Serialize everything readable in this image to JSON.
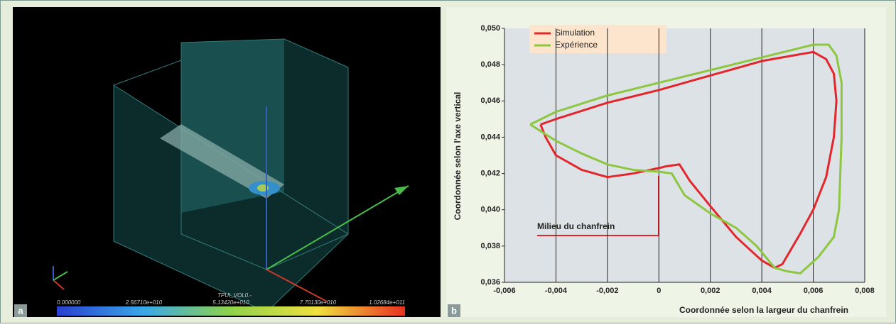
{
  "left_panel": {
    "letter": "a",
    "colorbar_title": "TPUI_VOL0.-",
    "colorbar_labels": [
      "0.000000",
      "2.56710e+010",
      "5.13420e+010",
      "7.70130e+010",
      "1.02684e+011"
    ]
  },
  "chart_data": {
    "type": "line",
    "letter": "b",
    "x_label": "Coordonnée selon la largeur du chanfrein",
    "y_label": "Coordonnée selon l’axe vertical",
    "annotation": "Milieu du chanfrein",
    "xlim": [
      -0.006,
      0.008
    ],
    "xticks": [
      {
        "value": -0.006,
        "label": "-0,006"
      },
      {
        "value": -0.004,
        "label": "-0,004"
      },
      {
        "value": -0.002,
        "label": "-0,002"
      },
      0,
      {
        "value": 0.002,
        "label": "0,002"
      },
      {
        "value": 0.004,
        "label": "0,004"
      },
      {
        "value": 0.006,
        "label": "0,006"
      },
      {
        "value": 0.008,
        "label": "0,008"
      }
    ],
    "ylim": [
      0.036,
      0.05
    ],
    "yticks": [
      {
        "value": 0.036,
        "label": "0,036"
      },
      {
        "value": 0.038,
        "label": "0,038"
      },
      {
        "value": 0.04,
        "label": "0,040"
      },
      {
        "value": 0.042,
        "label": "0,042"
      },
      {
        "value": 0.044,
        "label": "0,044"
      },
      {
        "value": 0.046,
        "label": "0,046"
      },
      {
        "value": 0.048,
        "label": "0,048"
      },
      {
        "value": 0.05,
        "label": "0,050"
      }
    ],
    "grid": "x",
    "series": [
      {
        "name": "Simulation",
        "color": "#e3262b",
        "x": [
          -0.0046,
          -0.004,
          -0.002,
          0,
          0.002,
          0.004,
          0.006,
          0.0065,
          0.0068,
          0.0069,
          0.0068,
          0.0065,
          0.006,
          0.0055,
          0.0048,
          0.0045,
          0.004,
          0.003,
          0.002,
          0.0012,
          0.0008,
          0.0003,
          0,
          -0.001,
          -0.002,
          -0.003,
          -0.004,
          -0.0044,
          -0.0046
        ],
        "values": [
          0.0447,
          0.045,
          0.0459,
          0.0466,
          0.0474,
          0.0482,
          0.0487,
          0.0483,
          0.0475,
          0.046,
          0.044,
          0.0418,
          0.04,
          0.0387,
          0.037,
          0.0368,
          0.0372,
          0.0385,
          0.0402,
          0.0416,
          0.0425,
          0.0424,
          0.0423,
          0.042,
          0.0418,
          0.0422,
          0.043,
          0.044,
          0.0447
        ]
      },
      {
        "name": "Expérience",
        "color": "#8dc63f",
        "x": [
          -0.005,
          -0.004,
          -0.002,
          0,
          0.002,
          0.004,
          0.006,
          0.0066,
          0.0069,
          0.0071,
          0.0071,
          0.007,
          0.0068,
          0.0062,
          0.0055,
          0.005,
          0.0045,
          0.0038,
          0.003,
          0.002,
          0.001,
          0.0005,
          0,
          -0.001,
          -0.002,
          -0.003,
          -0.004,
          -0.005
        ],
        "values": [
          0.0447,
          0.0454,
          0.0463,
          0.047,
          0.0477,
          0.0484,
          0.0491,
          0.0491,
          0.0485,
          0.047,
          0.044,
          0.04,
          0.0385,
          0.0374,
          0.0365,
          0.0366,
          0.0368,
          0.038,
          0.039,
          0.0398,
          0.0408,
          0.042,
          0.0421,
          0.0422,
          0.0425,
          0.0431,
          0.0438,
          0.0447
        ]
      }
    ]
  }
}
